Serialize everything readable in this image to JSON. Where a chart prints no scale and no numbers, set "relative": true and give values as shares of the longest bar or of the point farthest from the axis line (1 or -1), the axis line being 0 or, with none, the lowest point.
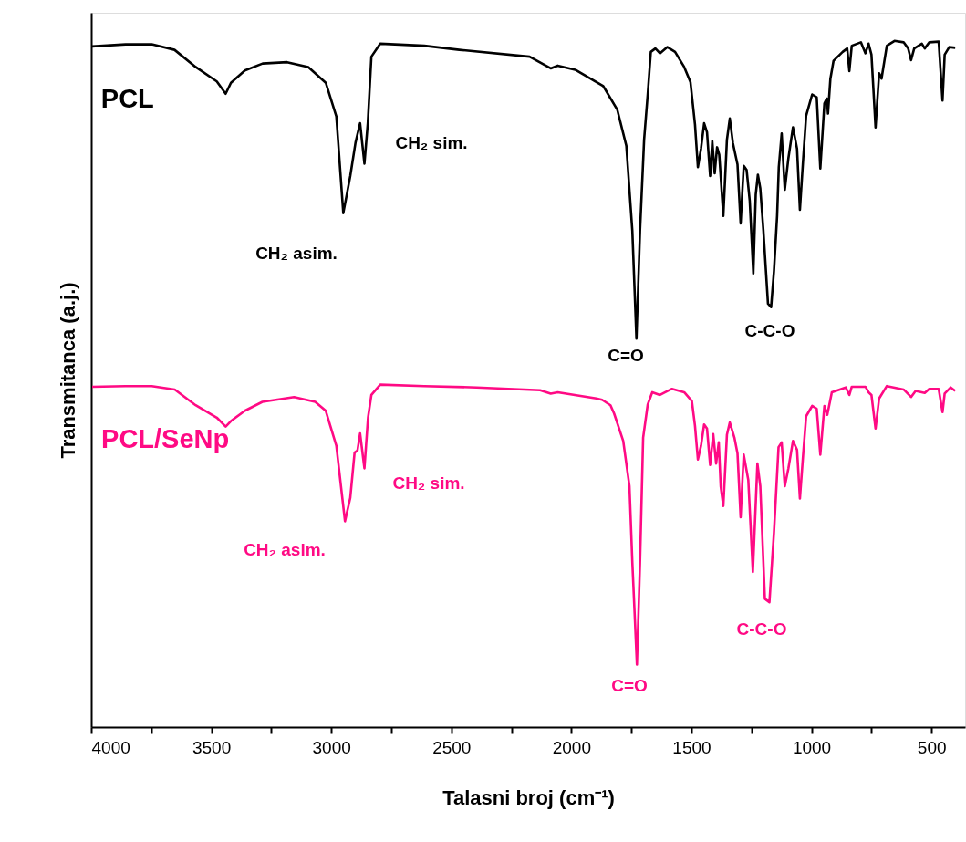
{
  "chart_data": {
    "type": "line",
    "relative": true,
    "xlabel": "Talasni broj (cm⁻¹)",
    "ylabel": "Transmitanca (a.j.)",
    "xlim": [
      4000,
      360
    ],
    "xticks": [
      4000,
      {
        "value": 3750,
        "label": null
      },
      3500,
      {
        "value": 3250,
        "label": null
      },
      3000,
      {
        "value": 2750,
        "label": null
      },
      2500,
      {
        "value": 2250,
        "label": null
      },
      2000,
      {
        "value": 1750,
        "label": null
      },
      1500,
      {
        "value": 1250,
        "label": null
      },
      1000,
      {
        "value": 750,
        "label": null
      },
      500
    ],
    "grid": false,
    "marker": "none",
    "line_style": "solid",
    "series": [
      {
        "name": "PCL",
        "color": "#000000",
        "x": [
          3997,
          3857,
          3748,
          3653,
          3565,
          3477,
          3440,
          3418,
          3360,
          3286,
          3184,
          3096,
          3023,
          2979,
          2950,
          2921,
          2899,
          2880,
          2862,
          2848,
          2833,
          2796,
          2613,
          2467,
          2174,
          2086,
          2057,
          1984,
          1867,
          1809,
          1771,
          1746,
          1729,
          1714,
          1697,
          1682,
          1669,
          1650,
          1631,
          1600,
          1568,
          1530,
          1504,
          1485,
          1473,
          1460,
          1447,
          1435,
          1422,
          1413,
          1403,
          1393,
          1384,
          1367,
          1352,
          1340,
          1327,
          1308,
          1295,
          1282,
          1270,
          1257,
          1242,
          1232,
          1223,
          1213,
          1200,
          1181,
          1168,
          1156,
          1143,
          1136,
          1124,
          1111,
          1096,
          1077,
          1060,
          1048,
          1035,
          1022,
          997,
          978,
          963,
          946,
          936,
          931,
          921,
          908,
          870,
          851,
          842,
          832,
          794,
          775,
          762,
          750,
          733,
          718,
          708,
          686,
          654,
          616,
          597,
          585,
          572,
          540,
          528,
          509,
          470,
          454,
          445,
          426,
          401
        ],
        "values": [
          0.992,
          0.995,
          0.995,
          0.987,
          0.962,
          0.941,
          0.923,
          0.939,
          0.957,
          0.967,
          0.969,
          0.962,
          0.939,
          0.89,
          0.749,
          0.803,
          0.852,
          0.88,
          0.821,
          0.88,
          0.977,
          0.996,
          0.993,
          0.987,
          0.977,
          0.96,
          0.964,
          0.958,
          0.934,
          0.9,
          0.847,
          0.723,
          0.566,
          0.723,
          0.856,
          0.922,
          0.984,
          0.989,
          0.982,
          0.991,
          0.984,
          0.962,
          0.94,
          0.878,
          0.816,
          0.843,
          0.88,
          0.867,
          0.803,
          0.854,
          0.807,
          0.845,
          0.834,
          0.745,
          0.856,
          0.887,
          0.851,
          0.82,
          0.734,
          0.818,
          0.812,
          0.767,
          0.661,
          0.776,
          0.805,
          0.785,
          0.723,
          0.617,
          0.612,
          0.665,
          0.745,
          0.816,
          0.865,
          0.783,
          0.829,
          0.874,
          0.843,
          0.754,
          0.825,
          0.891,
          0.922,
          0.918,
          0.814,
          0.909,
          0.916,
          0.894,
          0.945,
          0.971,
          0.984,
          0.989,
          0.956,
          0.993,
          0.998,
          0.982,
          0.996,
          0.98,
          0.874,
          0.953,
          0.945,
          0.993,
          1.0,
          0.998,
          0.989,
          0.972,
          0.989,
          0.996,
          0.989,
          0.998,
          0.999,
          0.913,
          0.98,
          0.991,
          0.99
        ]
      },
      {
        "name": "PCL/SeNp",
        "color": "#ff0a84",
        "x": [
          3996,
          3858,
          3748,
          3652,
          3565,
          3477,
          3440,
          3418,
          3360,
          3287,
          3155,
          3067,
          3023,
          2979,
          2943,
          2921,
          2903,
          2891,
          2880,
          2862,
          2847,
          2833,
          2796,
          2613,
          2394,
          2130,
          2086,
          2057,
          1896,
          1872,
          1837,
          1822,
          1784,
          1758,
          1746,
          1727,
          1714,
          1701,
          1682,
          1663,
          1631,
          1581,
          1530,
          1498,
          1485,
          1473,
          1460,
          1447,
          1435,
          1422,
          1409,
          1397,
          1386,
          1378,
          1367,
          1352,
          1340,
          1321,
          1308,
          1295,
          1282,
          1263,
          1244,
          1225,
          1213,
          1194,
          1175,
          1156,
          1137,
          1124,
          1111,
          1096,
          1077,
          1060,
          1048,
          1035,
          1022,
          997,
          978,
          963,
          946,
          934,
          915,
          857,
          842,
          832,
          775,
          762,
          750,
          733,
          718,
          686,
          616,
          585,
          566,
          528,
          509,
          470,
          454,
          445,
          420,
          401
        ],
        "values": [
          0.496,
          0.497,
          0.497,
          0.492,
          0.469,
          0.451,
          0.438,
          0.446,
          0.461,
          0.474,
          0.481,
          0.474,
          0.461,
          0.41,
          0.3,
          0.334,
          0.4,
          0.403,
          0.428,
          0.377,
          0.451,
          0.484,
          0.499,
          0.497,
          0.495,
          0.491,
          0.486,
          0.488,
          0.479,
          0.477,
          0.469,
          0.457,
          0.417,
          0.351,
          0.24,
          0.091,
          0.24,
          0.422,
          0.47,
          0.488,
          0.484,
          0.493,
          0.488,
          0.475,
          0.439,
          0.39,
          0.41,
          0.441,
          0.435,
          0.382,
          0.427,
          0.384,
          0.415,
          0.351,
          0.322,
          0.426,
          0.444,
          0.422,
          0.399,
          0.306,
          0.397,
          0.36,
          0.226,
          0.384,
          0.351,
          0.187,
          0.182,
          0.284,
          0.408,
          0.415,
          0.351,
          0.377,
          0.417,
          0.404,
          0.333,
          0.395,
          0.453,
          0.468,
          0.464,
          0.397,
          0.468,
          0.455,
          0.488,
          0.495,
          0.484,
          0.496,
          0.496,
          0.488,
          0.484,
          0.435,
          0.479,
          0.497,
          0.492,
          0.481,
          0.49,
          0.487,
          0.493,
          0.493,
          0.459,
          0.486,
          0.495,
          0.49
        ]
      }
    ],
    "annotations": [
      "CH₂ sim.",
      "CH₂ asim.",
      "C=O",
      "C-C-O",
      "CH₂ sim.",
      "CH₂ asim.",
      "C=O",
      "C-C-O"
    ]
  }
}
